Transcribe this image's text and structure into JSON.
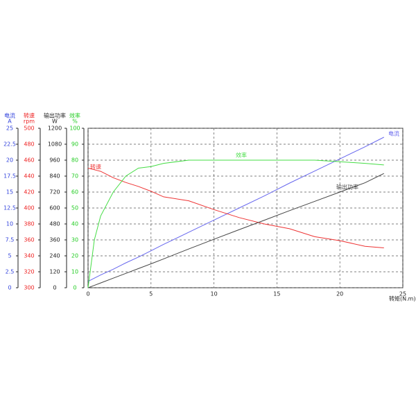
{
  "chart_data": {
    "type": "line",
    "x_label": "转矩(N.m)",
    "xlim": [
      0,
      25
    ],
    "xticks": [
      0,
      5,
      10,
      15,
      20,
      25
    ],
    "x": [
      0,
      0.5,
      1,
      2,
      3,
      4,
      5,
      6,
      8,
      10,
      12,
      14,
      16,
      18,
      20,
      22,
      23.5
    ],
    "y_axes": [
      {
        "name": "电流",
        "unit": "A",
        "color": "#3344dd",
        "lim": [
          0,
          25
        ],
        "ticks": [
          0,
          2.5,
          5,
          7.5,
          10,
          12.5,
          15,
          17.5,
          20,
          22.5,
          25
        ]
      },
      {
        "name": "转速",
        "unit": "rpm",
        "color": "#ee2222",
        "lim": [
          300,
          500
        ],
        "ticks": [
          300,
          320,
          340,
          360,
          380,
          400,
          420,
          440,
          460,
          480,
          500
        ]
      },
      {
        "name": "输出功率",
        "unit": "W",
        "color": "#222222",
        "lim": [
          0,
          1200
        ],
        "ticks": [
          0,
          120,
          240,
          360,
          480,
          600,
          720,
          840,
          960,
          1080,
          1200
        ]
      },
      {
        "name": "效率",
        "unit": "%",
        "color": "#22cc22",
        "lim": [
          0,
          100
        ],
        "ticks": [
          0,
          10,
          20,
          30,
          40,
          50,
          60,
          70,
          80,
          90,
          100
        ]
      }
    ],
    "grid": true,
    "series": [
      {
        "name": "电流",
        "axis": 0,
        "color": "#6666ee",
        "values": [
          1,
          1.5,
          2,
          2.9,
          3.9,
          4.8,
          5.8,
          6.8,
          8.7,
          10.6,
          12.5,
          14.4,
          16.4,
          18.3,
          20.2,
          22.1,
          23.6
        ]
      },
      {
        "name": "转速",
        "axis": 1,
        "color": "#ee3333",
        "values": [
          450,
          448,
          446,
          438,
          432,
          427,
          421,
          414,
          409,
          398,
          388,
          380,
          374,
          364,
          359,
          352,
          350
        ]
      },
      {
        "name": "输出功率",
        "axis": 2,
        "color": "#444444",
        "values": [
          0,
          18,
          36,
          72,
          108,
          144,
          180,
          217,
          292,
          365,
          437,
          508,
          580,
          650,
          720,
          790,
          860
        ]
      },
      {
        "name": "效率",
        "axis": 3,
        "color": "#44dd44",
        "values": [
          0,
          30,
          45,
          60,
          70,
          75,
          76,
          78,
          80,
          80,
          80,
          80,
          80,
          80,
          79,
          78,
          77
        ]
      }
    ]
  }
}
